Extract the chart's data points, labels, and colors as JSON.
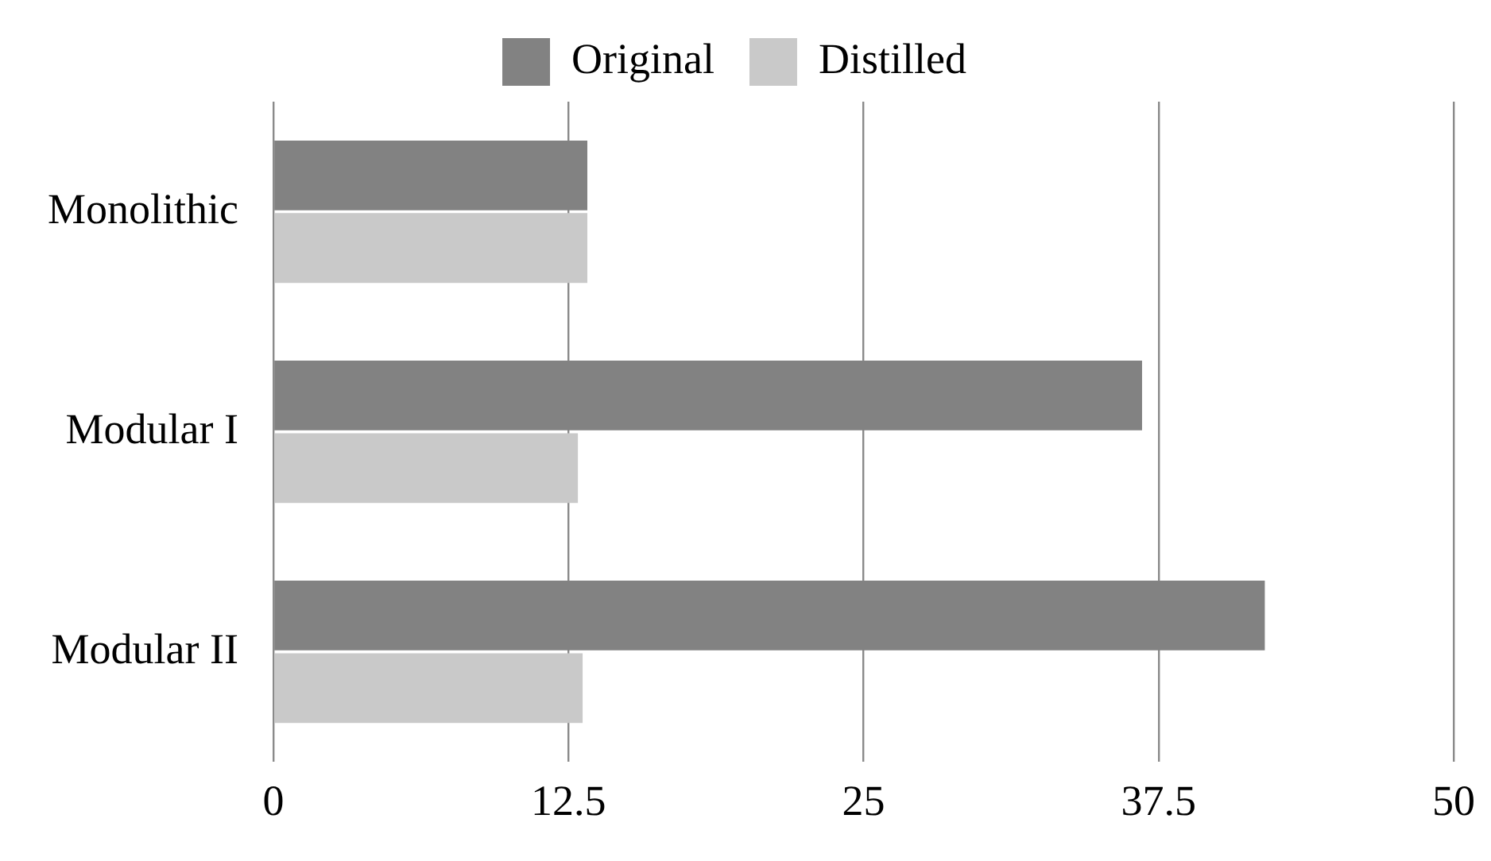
{
  "chart_data": {
    "type": "bar",
    "orientation": "horizontal",
    "categories": [
      "Monolithic",
      "Modular I",
      "Modular II"
    ],
    "series": [
      {
        "name": "Original",
        "color": "#828282",
        "values": [
          13.3,
          36.8,
          42
        ]
      },
      {
        "name": "Distilled",
        "color": "#c9c9c9",
        "values": [
          13.3,
          12.9,
          13.1
        ]
      }
    ],
    "xlim": [
      0,
      50
    ],
    "xticks": [
      0,
      12.5,
      25,
      37.5,
      50
    ],
    "grid": "x",
    "legend": "top"
  }
}
